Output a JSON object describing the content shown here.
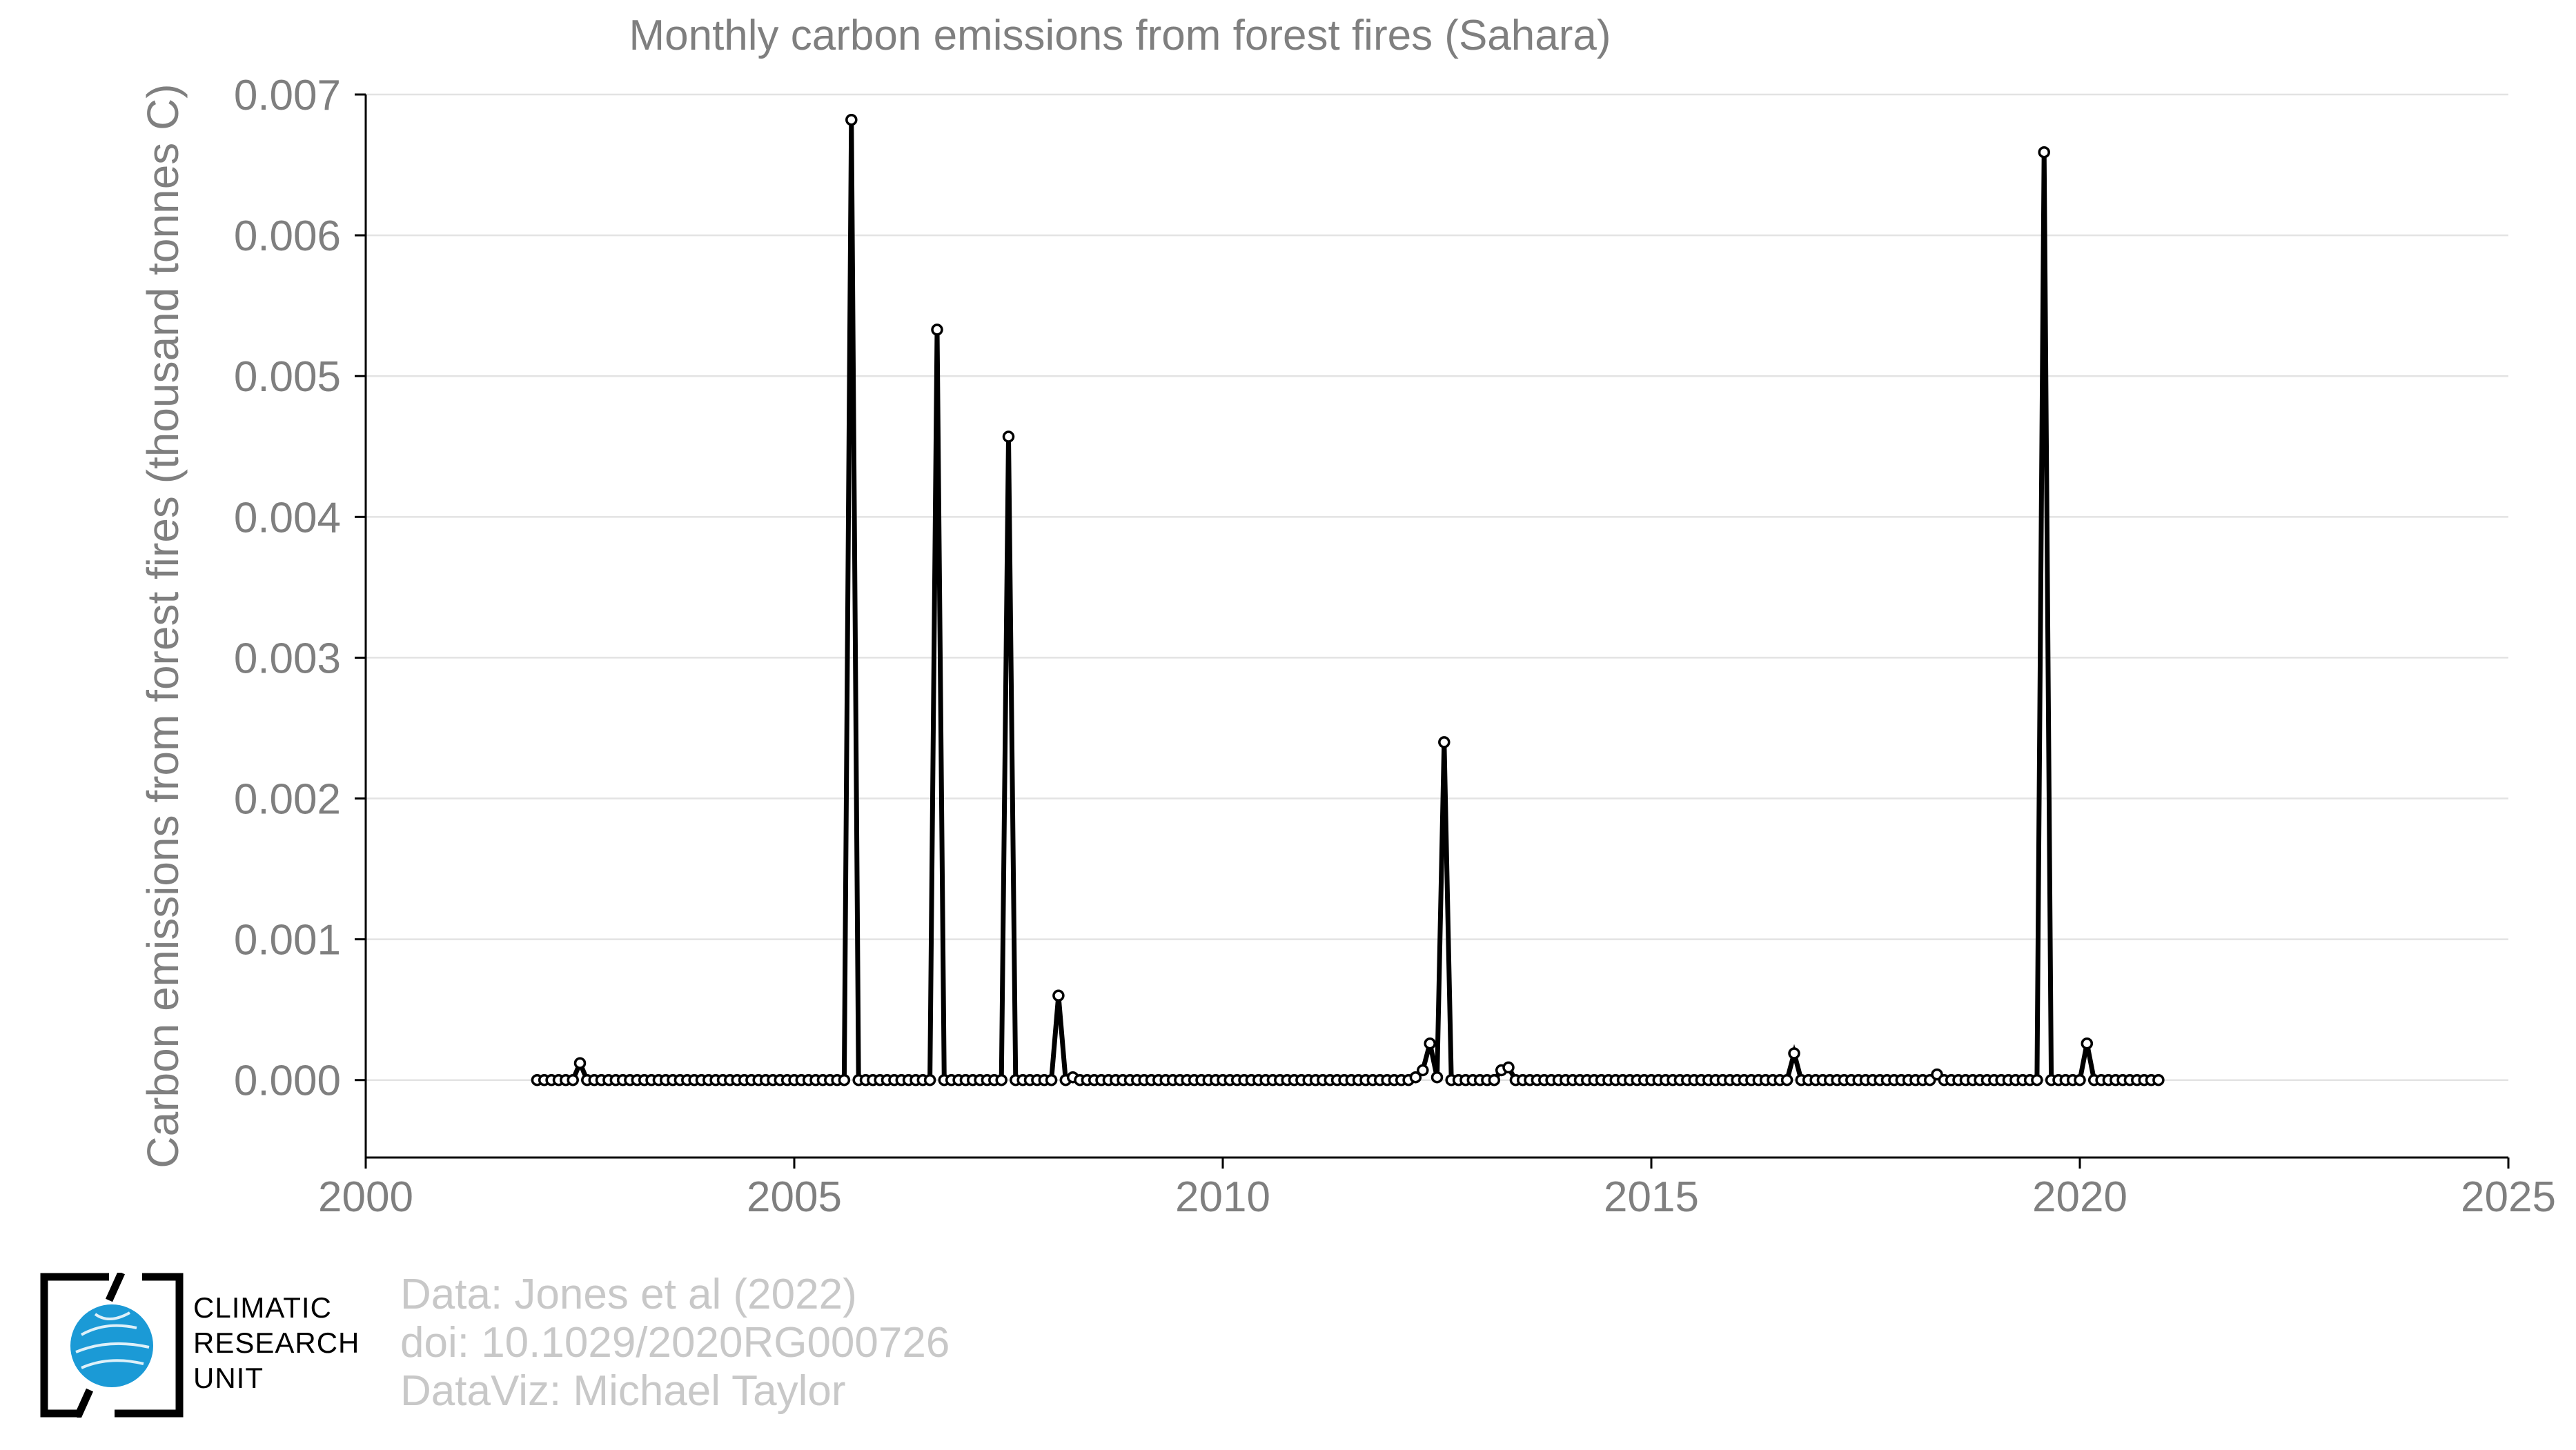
{
  "chart_data": {
    "type": "line",
    "title": "Monthly carbon emissions from forest fires (Sahara)",
    "xlabel": "",
    "ylabel": "Carbon emissions from forest fires (thousand tonnes C)",
    "xlim": [
      2000,
      2025
    ],
    "ylim": [
      -0.00055,
      0.007
    ],
    "x_ticks": [
      2000,
      2005,
      2010,
      2015,
      2020,
      2025
    ],
    "y_ticks": [
      "0.000",
      "0.001",
      "0.002",
      "0.003",
      "0.004",
      "0.005",
      "0.006",
      "0.007"
    ],
    "grid": "horizontal",
    "legend": "none",
    "series_color": "#000000",
    "start": "2002-01",
    "end": "2020-12",
    "nonzero_months": {
      "2002-07": 0.00012,
      "2005-09": 0.00682,
      "2006-09": 0.00533,
      "2007-07": 0.00457,
      "2008-02": 0.0006,
      "2008-04": 2e-05,
      "2012-04": 2e-05,
      "2012-05": 7e-05,
      "2012-06": 0.00026,
      "2012-07": 2e-05,
      "2012-08": 0.0024,
      "2013-04": 7e-05,
      "2013-05": 9e-05,
      "2016-09": 0.00019,
      "2018-05": 4e-05,
      "2019-08": 0.00659,
      "2020-02": 0.00026
    }
  },
  "credits": {
    "line1": "Data: Jones et al (2022)",
    "line2": "doi: 10.1029/2020RG000726",
    "line3": "DataViz: Michael Taylor"
  },
  "logo": {
    "line1": "CLIMATIC",
    "line2": "RESEARCH",
    "line3": "UNIT",
    "globe_color": "#1b9ad6"
  }
}
